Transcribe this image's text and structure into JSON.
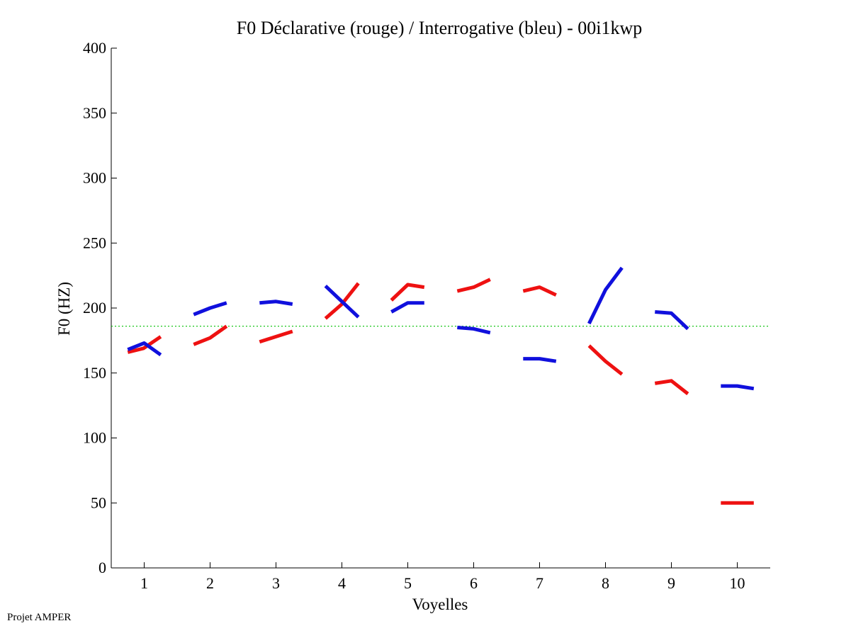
{
  "chart_data": {
    "type": "line",
    "title": "F0 Déclarative (rouge) / Interrogative (bleu) - 00i1kwp",
    "xlabel": "Voyelles",
    "ylabel": "F0 (HZ)",
    "xlim": [
      0.5,
      10.5
    ],
    "ylim": [
      0,
      400
    ],
    "xticks": [
      1,
      2,
      3,
      4,
      5,
      6,
      7,
      8,
      9,
      10
    ],
    "yticks": [
      0,
      50,
      100,
      150,
      200,
      250,
      300,
      350,
      400
    ],
    "reference_line": {
      "y": 186,
      "color": "#00c000",
      "style": "dotted"
    },
    "series": [
      {
        "name": "Déclarative",
        "color": "#ee1111",
        "segments": [
          {
            "vowel": 1,
            "points": [
              [
                0.75,
                166
              ],
              [
                0.99,
                169
              ],
              [
                1.25,
                178
              ]
            ]
          },
          {
            "vowel": 2,
            "points": [
              [
                1.75,
                172
              ],
              [
                2.0,
                177
              ],
              [
                2.25,
                186
              ]
            ]
          },
          {
            "vowel": 3,
            "points": [
              [
                2.75,
                174
              ],
              [
                3.0,
                178
              ],
              [
                3.25,
                182
              ]
            ]
          },
          {
            "vowel": 4,
            "points": [
              [
                3.75,
                192
              ],
              [
                4.0,
                203
              ],
              [
                4.25,
                219
              ]
            ]
          },
          {
            "vowel": 5,
            "points": [
              [
                4.75,
                206
              ],
              [
                5.0,
                218
              ],
              [
                5.25,
                216
              ]
            ]
          },
          {
            "vowel": 6,
            "points": [
              [
                5.75,
                213
              ],
              [
                6.0,
                216
              ],
              [
                6.25,
                222
              ]
            ]
          },
          {
            "vowel": 7,
            "points": [
              [
                6.75,
                213
              ],
              [
                7.0,
                216
              ],
              [
                7.25,
                210
              ]
            ]
          },
          {
            "vowel": 8,
            "points": [
              [
                7.75,
                171
              ],
              [
                8.0,
                159
              ],
              [
                8.25,
                149
              ]
            ]
          },
          {
            "vowel": 9,
            "points": [
              [
                8.75,
                142
              ],
              [
                9.0,
                144
              ],
              [
                9.25,
                134
              ]
            ]
          },
          {
            "vowel": 10,
            "points": [
              [
                9.75,
                50
              ],
              [
                10.0,
                50
              ],
              [
                10.25,
                50
              ]
            ]
          }
        ]
      },
      {
        "name": "Interrogative",
        "color": "#1010dd",
        "segments": [
          {
            "vowel": 1,
            "points": [
              [
                0.75,
                168
              ],
              [
                1.0,
                173
              ],
              [
                1.25,
                164
              ]
            ]
          },
          {
            "vowel": 2,
            "points": [
              [
                1.75,
                195
              ],
              [
                2.0,
                200
              ],
              [
                2.25,
                204
              ]
            ]
          },
          {
            "vowel": 3,
            "points": [
              [
                2.75,
                204
              ],
              [
                3.0,
                205
              ],
              [
                3.25,
                203
              ]
            ]
          },
          {
            "vowel": 4,
            "points": [
              [
                3.75,
                217
              ],
              [
                4.0,
                205
              ],
              [
                4.25,
                193
              ]
            ]
          },
          {
            "vowel": 5,
            "points": [
              [
                4.75,
                197
              ],
              [
                5.0,
                204
              ],
              [
                5.25,
                204
              ]
            ]
          },
          {
            "vowel": 6,
            "points": [
              [
                5.75,
                185
              ],
              [
                6.0,
                184
              ],
              [
                6.25,
                181
              ]
            ]
          },
          {
            "vowel": 7,
            "points": [
              [
                6.75,
                161
              ],
              [
                7.0,
                161
              ],
              [
                7.25,
                159
              ]
            ]
          },
          {
            "vowel": 8,
            "points": [
              [
                7.75,
                188
              ],
              [
                8.0,
                214
              ],
              [
                8.25,
                231
              ]
            ]
          },
          {
            "vowel": 9,
            "points": [
              [
                8.75,
                197
              ],
              [
                9.0,
                196
              ],
              [
                9.25,
                184
              ]
            ]
          },
          {
            "vowel": 10,
            "points": [
              [
                9.75,
                140
              ],
              [
                10.0,
                140
              ],
              [
                10.25,
                138
              ]
            ]
          }
        ]
      }
    ]
  },
  "footer": {
    "credit": "Projet AMPER"
  }
}
